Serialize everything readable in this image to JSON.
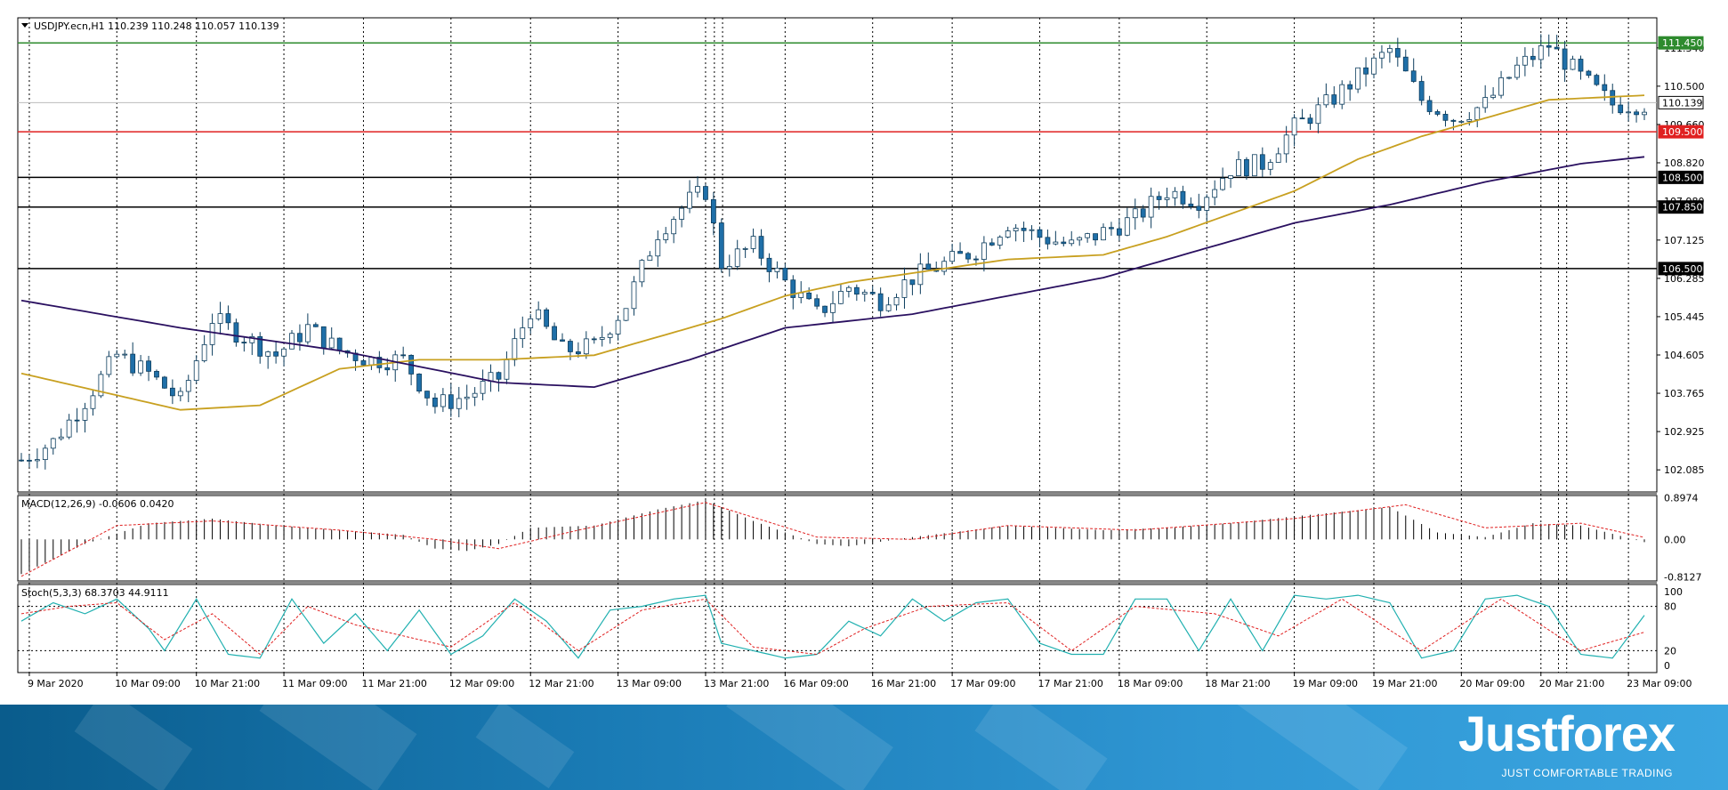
{
  "symbol_header": {
    "symbol": "USDJPY.ecn,H1",
    "ohlc": "110.239 110.248 110.057 110.139"
  },
  "colors": {
    "background": "#ffffff",
    "grid": "#000000",
    "up_candle": "#ffffff",
    "down_candle": "#1f6fa8",
    "ma_fast": "#c8a020",
    "ma_slow": "#2a1060",
    "green_level": "#2e8b2e",
    "red_level": "#e02020",
    "black_level": "#000000",
    "macd_hist": "#000000",
    "macd_signal": "#e02020",
    "stoch_main": "#20b0b0",
    "stoch_signal": "#e02020"
  },
  "chart_data": [
    {
      "type": "candlestick",
      "symbol": "USDJPY.ecn",
      "timeframe": "H1",
      "ylim": [
        101.6,
        112.0
      ],
      "y_ticks": [
        "111.340",
        "110.500",
        "109.660",
        "108.820",
        "107.980",
        "107.125",
        "106.285",
        "105.445",
        "104.605",
        "103.765",
        "102.925",
        "102.085"
      ],
      "x_tick_labels": [
        "9 Mar 2020",
        "10 Mar 09:00",
        "10 Mar 21:00",
        "11 Mar 09:00",
        "11 Mar 21:00",
        "12 Mar 09:00",
        "12 Mar 21:00",
        "13 Mar 09:00",
        "13 Mar 21:00",
        "16 Mar 09:00",
        "16 Mar 21:00",
        "17 Mar 09:00",
        "17 Mar 21:00",
        "18 Mar 09:00",
        "18 Mar 21:00",
        "19 Mar 09:00",
        "19 Mar 21:00",
        "20 Mar 09:00",
        "20 Mar 21:00",
        "23 Mar 09:00"
      ],
      "horizontal_levels": [
        {
          "label": "111.450",
          "value": 111.45,
          "color": "green"
        },
        {
          "label": "110.139",
          "value": 110.139,
          "color": "current"
        },
        {
          "label": "109.500",
          "value": 109.5,
          "color": "red"
        },
        {
          "label": "108.500",
          "value": 108.5,
          "color": "black"
        },
        {
          "label": "107.850",
          "value": 107.85,
          "color": "black"
        },
        {
          "label": "106.500",
          "value": 106.5,
          "color": "black"
        }
      ],
      "close_path_keypoints": [
        {
          "x": 0,
          "y": 102.3
        },
        {
          "x": 4,
          "y": 102.7
        },
        {
          "x": 8,
          "y": 103.6
        },
        {
          "x": 12,
          "y": 104.6
        },
        {
          "x": 16,
          "y": 104.2
        },
        {
          "x": 20,
          "y": 103.6
        },
        {
          "x": 24,
          "y": 105.4
        },
        {
          "x": 28,
          "y": 105.0
        },
        {
          "x": 32,
          "y": 104.6
        },
        {
          "x": 36,
          "y": 105.2
        },
        {
          "x": 40,
          "y": 104.7
        },
        {
          "x": 44,
          "y": 104.5
        },
        {
          "x": 48,
          "y": 104.5
        },
        {
          "x": 52,
          "y": 103.5
        },
        {
          "x": 56,
          "y": 103.7
        },
        {
          "x": 60,
          "y": 104.1
        },
        {
          "x": 64,
          "y": 105.6
        },
        {
          "x": 68,
          "y": 104.7
        },
        {
          "x": 72,
          "y": 104.8
        },
        {
          "x": 76,
          "y": 105.7
        },
        {
          "x": 80,
          "y": 107.3
        },
        {
          "x": 84,
          "y": 108.0
        },
        {
          "x": 86,
          "y": 108.2
        },
        {
          "x": 88,
          "y": 106.6
        },
        {
          "x": 92,
          "y": 107.0
        },
        {
          "x": 96,
          "y": 106.2
        },
        {
          "x": 100,
          "y": 105.5
        },
        {
          "x": 104,
          "y": 106.1
        },
        {
          "x": 108,
          "y": 105.8
        },
        {
          "x": 112,
          "y": 106.3
        },
        {
          "x": 116,
          "y": 106.6
        },
        {
          "x": 120,
          "y": 106.9
        },
        {
          "x": 124,
          "y": 107.5
        },
        {
          "x": 128,
          "y": 107.2
        },
        {
          "x": 132,
          "y": 107.0
        },
        {
          "x": 136,
          "y": 107.3
        },
        {
          "x": 140,
          "y": 107.6
        },
        {
          "x": 144,
          "y": 108.2
        },
        {
          "x": 148,
          "y": 108.0
        },
        {
          "x": 152,
          "y": 108.7
        },
        {
          "x": 156,
          "y": 108.8
        },
        {
          "x": 160,
          "y": 109.6
        },
        {
          "x": 164,
          "y": 110.1
        },
        {
          "x": 168,
          "y": 110.7
        },
        {
          "x": 172,
          "y": 111.3
        },
        {
          "x": 176,
          "y": 110.2
        },
        {
          "x": 180,
          "y": 109.8
        },
        {
          "x": 184,
          "y": 110.1
        },
        {
          "x": 188,
          "y": 110.9
        },
        {
          "x": 192,
          "y": 111.4
        },
        {
          "x": 196,
          "y": 110.7
        },
        {
          "x": 200,
          "y": 110.1
        },
        {
          "x": 204,
          "y": 110.1
        }
      ],
      "moving_averages": [
        {
          "name": "ma_fast",
          "points": [
            {
              "x": 0,
              "y": 104.2
            },
            {
              "x": 20,
              "y": 103.4
            },
            {
              "x": 30,
              "y": 103.5
            },
            {
              "x": 40,
              "y": 104.3
            },
            {
              "x": 50,
              "y": 104.5
            },
            {
              "x": 60,
              "y": 104.5
            },
            {
              "x": 72,
              "y": 104.6
            },
            {
              "x": 80,
              "y": 105.0
            },
            {
              "x": 88,
              "y": 105.4
            },
            {
              "x": 96,
              "y": 105.9
            },
            {
              "x": 104,
              "y": 106.2
            },
            {
              "x": 112,
              "y": 106.4
            },
            {
              "x": 124,
              "y": 106.7
            },
            {
              "x": 136,
              "y": 106.8
            },
            {
              "x": 144,
              "y": 107.2
            },
            {
              "x": 152,
              "y": 107.7
            },
            {
              "x": 160,
              "y": 108.2
            },
            {
              "x": 168,
              "y": 108.9
            },
            {
              "x": 176,
              "y": 109.4
            },
            {
              "x": 184,
              "y": 109.8
            },
            {
              "x": 192,
              "y": 110.2
            },
            {
              "x": 204,
              "y": 110.3
            }
          ]
        },
        {
          "name": "ma_slow",
          "points": [
            {
              "x": 0,
              "y": 105.8
            },
            {
              "x": 20,
              "y": 105.2
            },
            {
              "x": 40,
              "y": 104.7
            },
            {
              "x": 60,
              "y": 104.0
            },
            {
              "x": 72,
              "y": 103.9
            },
            {
              "x": 84,
              "y": 104.5
            },
            {
              "x": 96,
              "y": 105.2
            },
            {
              "x": 112,
              "y": 105.5
            },
            {
              "x": 124,
              "y": 105.9
            },
            {
              "x": 136,
              "y": 106.3
            },
            {
              "x": 148,
              "y": 106.9
            },
            {
              "x": 160,
              "y": 107.5
            },
            {
              "x": 172,
              "y": 107.9
            },
            {
              "x": 184,
              "y": 108.4
            },
            {
              "x": 196,
              "y": 108.8
            },
            {
              "x": 204,
              "y": 108.95
            }
          ]
        }
      ]
    },
    {
      "type": "macd",
      "label": "MACD(12,26,9) -0.0606 0.0420",
      "y_ticks": [
        "0.8974",
        "0.00",
        "-0.8127"
      ],
      "ylim": [
        -0.9,
        0.95
      ],
      "histogram_keypoints": [
        {
          "x": 0,
          "y": -0.75
        },
        {
          "x": 8,
          "y": -0.1
        },
        {
          "x": 16,
          "y": 0.35
        },
        {
          "x": 24,
          "y": 0.45
        },
        {
          "x": 32,
          "y": 0.3
        },
        {
          "x": 40,
          "y": 0.2
        },
        {
          "x": 48,
          "y": 0.1
        },
        {
          "x": 52,
          "y": -0.2
        },
        {
          "x": 56,
          "y": -0.25
        },
        {
          "x": 60,
          "y": -0.1
        },
        {
          "x": 64,
          "y": 0.25
        },
        {
          "x": 72,
          "y": 0.3
        },
        {
          "x": 80,
          "y": 0.65
        },
        {
          "x": 86,
          "y": 0.85
        },
        {
          "x": 92,
          "y": 0.4
        },
        {
          "x": 100,
          "y": -0.1
        },
        {
          "x": 104,
          "y": -0.15
        },
        {
          "x": 112,
          "y": 0.05
        },
        {
          "x": 124,
          "y": 0.3
        },
        {
          "x": 136,
          "y": 0.2
        },
        {
          "x": 144,
          "y": 0.25
        },
        {
          "x": 152,
          "y": 0.35
        },
        {
          "x": 160,
          "y": 0.5
        },
        {
          "x": 172,
          "y": 0.7
        },
        {
          "x": 178,
          "y": 0.15
        },
        {
          "x": 184,
          "y": 0.05
        },
        {
          "x": 190,
          "y": 0.35
        },
        {
          "x": 196,
          "y": 0.3
        },
        {
          "x": 204,
          "y": -0.06
        }
      ],
      "signal_keypoints": [
        {
          "x": 0,
          "y": -0.8
        },
        {
          "x": 12,
          "y": 0.3
        },
        {
          "x": 24,
          "y": 0.4
        },
        {
          "x": 40,
          "y": 0.2
        },
        {
          "x": 52,
          "y": 0.0
        },
        {
          "x": 60,
          "y": -0.2
        },
        {
          "x": 70,
          "y": 0.2
        },
        {
          "x": 86,
          "y": 0.8
        },
        {
          "x": 100,
          "y": 0.05
        },
        {
          "x": 112,
          "y": 0.0
        },
        {
          "x": 124,
          "y": 0.3
        },
        {
          "x": 140,
          "y": 0.2
        },
        {
          "x": 160,
          "y": 0.45
        },
        {
          "x": 174,
          "y": 0.75
        },
        {
          "x": 184,
          "y": 0.25
        },
        {
          "x": 196,
          "y": 0.35
        },
        {
          "x": 204,
          "y": 0.042
        }
      ]
    },
    {
      "type": "stochastic",
      "label": "Stoch(5,3,3) 68.3703 44.9111",
      "y_ticks": [
        "100",
        "80",
        "20",
        "0"
      ],
      "ylim": [
        0,
        100
      ],
      "main_keypoints": [
        {
          "x": 0,
          "y": 60
        },
        {
          "x": 4,
          "y": 85
        },
        {
          "x": 8,
          "y": 70
        },
        {
          "x": 12,
          "y": 90
        },
        {
          "x": 16,
          "y": 50
        },
        {
          "x": 18,
          "y": 20
        },
        {
          "x": 22,
          "y": 90
        },
        {
          "x": 26,
          "y": 15
        },
        {
          "x": 30,
          "y": 10
        },
        {
          "x": 34,
          "y": 90
        },
        {
          "x": 38,
          "y": 30
        },
        {
          "x": 42,
          "y": 70
        },
        {
          "x": 46,
          "y": 20
        },
        {
          "x": 50,
          "y": 75
        },
        {
          "x": 54,
          "y": 15
        },
        {
          "x": 58,
          "y": 40
        },
        {
          "x": 62,
          "y": 90
        },
        {
          "x": 66,
          "y": 60
        },
        {
          "x": 70,
          "y": 10
        },
        {
          "x": 74,
          "y": 75
        },
        {
          "x": 78,
          "y": 80
        },
        {
          "x": 82,
          "y": 90
        },
        {
          "x": 86,
          "y": 95
        },
        {
          "x": 88,
          "y": 30
        },
        {
          "x": 92,
          "y": 20
        },
        {
          "x": 96,
          "y": 10
        },
        {
          "x": 100,
          "y": 15
        },
        {
          "x": 104,
          "y": 60
        },
        {
          "x": 108,
          "y": 40
        },
        {
          "x": 112,
          "y": 90
        },
        {
          "x": 116,
          "y": 60
        },
        {
          "x": 120,
          "y": 85
        },
        {
          "x": 124,
          "y": 90
        },
        {
          "x": 128,
          "y": 30
        },
        {
          "x": 132,
          "y": 15
        },
        {
          "x": 136,
          "y": 15
        },
        {
          "x": 140,
          "y": 90
        },
        {
          "x": 144,
          "y": 90
        },
        {
          "x": 148,
          "y": 20
        },
        {
          "x": 152,
          "y": 90
        },
        {
          "x": 156,
          "y": 20
        },
        {
          "x": 160,
          "y": 95
        },
        {
          "x": 164,
          "y": 90
        },
        {
          "x": 168,
          "y": 95
        },
        {
          "x": 172,
          "y": 85
        },
        {
          "x": 176,
          "y": 10
        },
        {
          "x": 180,
          "y": 20
        },
        {
          "x": 184,
          "y": 90
        },
        {
          "x": 188,
          "y": 95
        },
        {
          "x": 192,
          "y": 80
        },
        {
          "x": 196,
          "y": 15
        },
        {
          "x": 200,
          "y": 10
        },
        {
          "x": 204,
          "y": 68
        }
      ],
      "signal_keypoints": [
        {
          "x": 0,
          "y": 70
        },
        {
          "x": 6,
          "y": 80
        },
        {
          "x": 12,
          "y": 85
        },
        {
          "x": 18,
          "y": 35
        },
        {
          "x": 24,
          "y": 70
        },
        {
          "x": 30,
          "y": 15
        },
        {
          "x": 36,
          "y": 80
        },
        {
          "x": 42,
          "y": 55
        },
        {
          "x": 48,
          "y": 40
        },
        {
          "x": 54,
          "y": 25
        },
        {
          "x": 62,
          "y": 85
        },
        {
          "x": 70,
          "y": 20
        },
        {
          "x": 78,
          "y": 75
        },
        {
          "x": 86,
          "y": 90
        },
        {
          "x": 92,
          "y": 25
        },
        {
          "x": 100,
          "y": 15
        },
        {
          "x": 106,
          "y": 50
        },
        {
          "x": 114,
          "y": 80
        },
        {
          "x": 124,
          "y": 85
        },
        {
          "x": 132,
          "y": 20
        },
        {
          "x": 140,
          "y": 80
        },
        {
          "x": 150,
          "y": 70
        },
        {
          "x": 158,
          "y": 40
        },
        {
          "x": 166,
          "y": 90
        },
        {
          "x": 176,
          "y": 20
        },
        {
          "x": 186,
          "y": 90
        },
        {
          "x": 196,
          "y": 20
        },
        {
          "x": 204,
          "y": 45
        }
      ]
    }
  ],
  "branding": {
    "logo": "Justforex",
    "tagline": "JUST COMFORTABLE TRADING"
  }
}
